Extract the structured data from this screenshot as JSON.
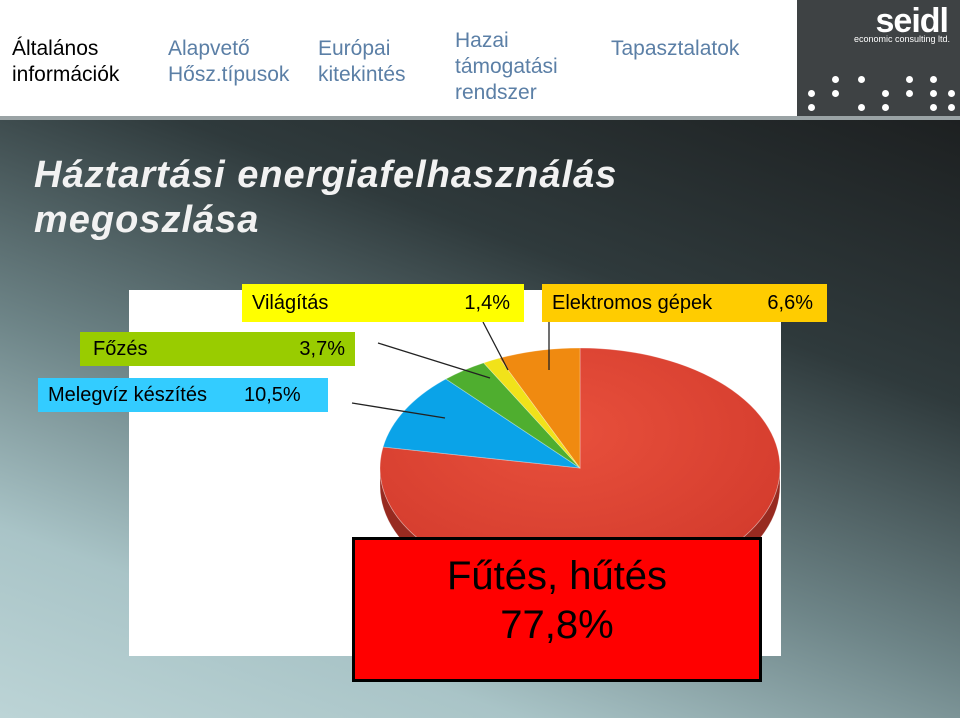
{
  "nav": {
    "items": [
      "Általános információk",
      "Alapvető Hősz.típusok",
      "Európai kitekintés",
      "Hazai támogatási rendszer",
      "Tapasztalatok"
    ]
  },
  "logo": {
    "name": "seidl",
    "tagline": "economic consulting ltd."
  },
  "slide": {
    "title": "Háztartási energiafelhasználás megoszlása"
  },
  "chart_data": {
    "type": "pie",
    "slices": [
      {
        "label": "Fűtés, hűtés",
        "value": 77.8,
        "display": "77,8%",
        "color": "#d23a2c"
      },
      {
        "label": "Melegvíz készítés",
        "value": 10.5,
        "display": "10,5%",
        "color": "#0aa3e8"
      },
      {
        "label": "Főzés",
        "value": 3.7,
        "display": "3,7%",
        "color": "#4fae2f"
      },
      {
        "label": "Világítás",
        "value": 1.4,
        "display": "1,4%",
        "color": "#f1e21a"
      },
      {
        "label": "Elektromos gépek",
        "value": 6.6,
        "display": "6,6%",
        "color": "#f08a10"
      }
    ],
    "label_colors": {
      "Világítás": "#ffff00",
      "Elektromos gépek": "#ffcc00",
      "Főzés": "#99cc00",
      "Melegvíz készítés": "#33ccff",
      "Fűtés, hűtés": "#ff0000"
    }
  }
}
